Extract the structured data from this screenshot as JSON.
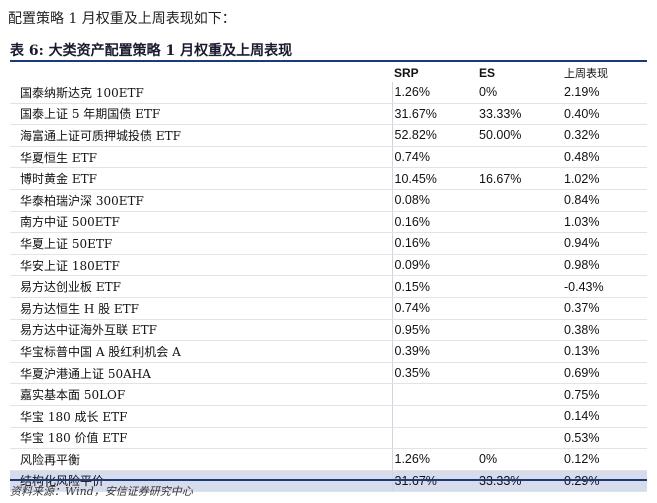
{
  "intro": "配置策略 1 月权重及上周表现如下：",
  "table": {
    "title": "表 6:   大类资产配置策略 1 月权重及上周表现",
    "headers": [
      "SRP",
      "ES",
      "上周表现"
    ],
    "rows": [
      {
        "name": "国泰纳斯达克 100ETF",
        "srp": "1.26%",
        "es": "0%",
        "week": "2.19%"
      },
      {
        "name": "国泰上证 5 年期国债 ETF",
        "srp": "31.67%",
        "es": "33.33%",
        "week": "0.40%"
      },
      {
        "name": "海富通上证可质押城投债 ETF",
        "srp": "52.82%",
        "es": "50.00%",
        "week": "0.32%"
      },
      {
        "name": "华夏恒生 ETF",
        "srp": "0.74%",
        "es": "",
        "week": "0.48%"
      },
      {
        "name": "博时黄金 ETF",
        "srp": "10.45%",
        "es": "16.67%",
        "week": "1.02%"
      },
      {
        "name": "华泰柏瑞沪深 300ETF",
        "srp": "0.08%",
        "es": "",
        "week": "0.84%"
      },
      {
        "name": "南方中证 500ETF",
        "srp": "0.16%",
        "es": "",
        "week": "1.03%"
      },
      {
        "name": "华夏上证 50ETF",
        "srp": "0.16%",
        "es": "",
        "week": "0.94%"
      },
      {
        "name": "华安上证 180ETF",
        "srp": "0.09%",
        "es": "",
        "week": "0.98%"
      },
      {
        "name": "易方达创业板 ETF",
        "srp": "0.15%",
        "es": "",
        "week": "-0.43%"
      },
      {
        "name": "易方达恒生 H 股 ETF",
        "srp": "0.74%",
        "es": "",
        "week": "0.37%"
      },
      {
        "name": "易方达中证海外互联 ETF",
        "srp": "0.95%",
        "es": "",
        "week": "0.38%"
      },
      {
        "name": "华宝标普中国 A 股红利机会 A",
        "srp": "0.39%",
        "es": "",
        "week": "0.13%"
      },
      {
        "name": "华夏沪港通上证 50AHA",
        "srp": "0.35%",
        "es": "",
        "week": "0.69%"
      },
      {
        "name": "嘉实基本面 50LOF",
        "srp": "",
        "es": "",
        "week": "0.75%"
      },
      {
        "name": "华宝 180 成长 ETF",
        "srp": "",
        "es": "",
        "week": "0.14%"
      },
      {
        "name": "华宝 180 价值 ETF",
        "srp": "",
        "es": "",
        "week": "0.53%"
      },
      {
        "name": "风险再平衡",
        "srp": "1.26%",
        "es": "0%",
        "week": "0.12%"
      },
      {
        "name": "结构化风险平价",
        "srp": "31.67%",
        "es": "33.33%",
        "week": "0.29%",
        "highlight": true
      }
    ]
  },
  "source": "资料来源：Wind，安信证券研究中心",
  "colors": {
    "rule": "#1b3a7a",
    "highlight_row": "#d6dcec"
  }
}
